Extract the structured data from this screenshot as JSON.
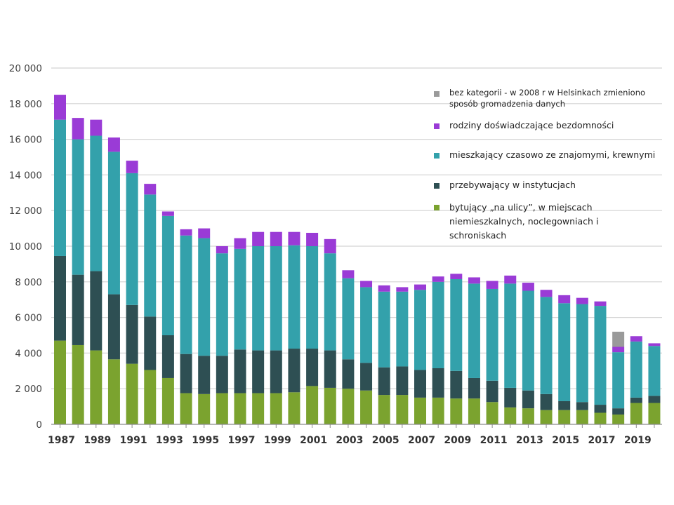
{
  "chart_data": {
    "type": "bar",
    "stacked": true,
    "title": "",
    "xlabel": "",
    "ylabel": "",
    "ylim": [
      0,
      20000
    ],
    "y_ticks": [
      0,
      2000,
      4000,
      6000,
      8000,
      10000,
      12000,
      14000,
      16000,
      18000,
      20000
    ],
    "y_tick_labels": [
      "0",
      "2 000",
      "4 000",
      "6 000",
      "8 000",
      "10 000",
      "12 000",
      "14 000",
      "16 000",
      "18 000",
      "20 000"
    ],
    "x_tick_labels": [
      "1987",
      "1989",
      "1991",
      "1993",
      "1995",
      "1997",
      "1999",
      "2001",
      "2003",
      "2005",
      "2007",
      "2009",
      "2011",
      "2013",
      "2015",
      "2017",
      "2019"
    ],
    "grid": "horizontal",
    "legend_position": "top-right",
    "categories": [
      "1987",
      "1988",
      "1989",
      "1990",
      "1991",
      "1992",
      "1993",
      "1994",
      "1995",
      "1996",
      "1997",
      "1998",
      "1999",
      "2000",
      "2001",
      "2002",
      "2003",
      "2004",
      "2005",
      "2006",
      "2007",
      "2008",
      "2009",
      "2010",
      "2011",
      "2012",
      "2013",
      "2014",
      "2015",
      "2016",
      "2017",
      "2018",
      "2019",
      "2020"
    ],
    "series": [
      {
        "name": "bytujący „na ulicy”, w miejscach niemieszkalnych, noclegowniach i schroniskach",
        "color": "#7ba32f",
        "values": [
          4700,
          4450,
          4150,
          3650,
          3400,
          3050,
          2600,
          1750,
          1700,
          1750,
          1750,
          1750,
          1750,
          1800,
          2150,
          2050,
          2000,
          1900,
          1650,
          1650,
          1500,
          1500,
          1450,
          1450,
          1250,
          950,
          900,
          800,
          800,
          800,
          650,
          550,
          1200,
          1200
        ]
      },
      {
        "name": "przebywający w instytucjach",
        "color": "#2e4f53",
        "values": [
          4750,
          3950,
          4450,
          3650,
          3300,
          3000,
          2400,
          2200,
          2150,
          2100,
          2450,
          2400,
          2400,
          2450,
          2100,
          2100,
          1650,
          1550,
          1550,
          1600,
          1550,
          1650,
          1550,
          1150,
          1200,
          1100,
          1000,
          900,
          500,
          450,
          450,
          350,
          300,
          400
        ]
      },
      {
        "name": "mieszkający czasowo ze znajomymi, krewnymi",
        "color": "#33a1ab",
        "values": [
          7650,
          7600,
          7600,
          8000,
          7400,
          6850,
          6700,
          6650,
          6600,
          5750,
          5650,
          5850,
          5850,
          5800,
          5750,
          5450,
          4550,
          4250,
          4250,
          4200,
          4500,
          4850,
          5150,
          5300,
          5150,
          5850,
          5600,
          5450,
          5500,
          5500,
          5550,
          3150,
          3150,
          2800
        ]
      },
      {
        "name": "rodziny doświadczające bezdomności",
        "color": "#9a3bd6",
        "values": [
          1400,
          1200,
          900,
          800,
          700,
          600,
          250,
          350,
          550,
          400,
          600,
          800,
          800,
          750,
          750,
          800,
          450,
          350,
          350,
          250,
          300,
          300,
          300,
          350,
          450,
          450,
          450,
          400,
          450,
          350,
          250,
          300,
          300,
          150
        ]
      },
      {
        "name": "bez kategorii - w 2008 r w Helsinkach zmieniono sposób gromadzenia danych",
        "color": "#9a9a9a",
        "values": [
          0,
          0,
          0,
          0,
          0,
          0,
          0,
          0,
          0,
          0,
          0,
          0,
          0,
          0,
          0,
          0,
          0,
          0,
          0,
          0,
          0,
          0,
          0,
          0,
          0,
          0,
          0,
          0,
          0,
          0,
          0,
          850,
          0,
          0
        ]
      }
    ],
    "legend_order": [
      4,
      3,
      2,
      1,
      0
    ]
  }
}
